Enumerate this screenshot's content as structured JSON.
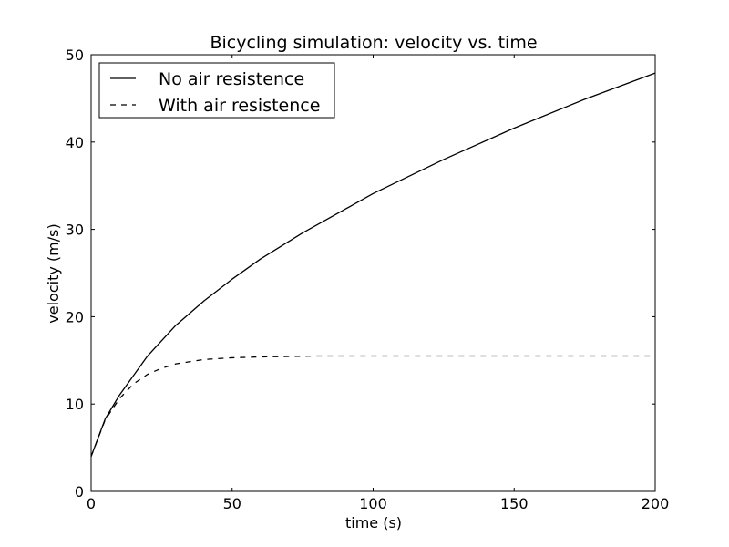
{
  "chart_data": {
    "type": "line",
    "title": "Bicycling simulation: velocity vs. time",
    "xlabel": "time (s)",
    "ylabel": "velocity (m/s)",
    "xlim": [
      0,
      200
    ],
    "ylim": [
      0,
      50
    ],
    "x_ticks": [
      0,
      50,
      100,
      150,
      200
    ],
    "y_ticks": [
      0,
      10,
      20,
      30,
      40,
      50
    ],
    "x_tick_labels": [
      "0",
      "50",
      "100",
      "150",
      "200"
    ],
    "y_tick_labels": [
      "0",
      "10",
      "20",
      "30",
      "40",
      "50"
    ],
    "grid": false,
    "legend_position": "top-left",
    "series": [
      {
        "name": "No air resistence",
        "line_style": "solid",
        "color": "#000000",
        "x": [
          0,
          5,
          10,
          20,
          30,
          40,
          50,
          60,
          75,
          100,
          125,
          150,
          175,
          200
        ],
        "y": [
          4.0,
          8.3,
          11.0,
          15.5,
          19.0,
          21.8,
          24.3,
          26.6,
          29.6,
          34.1,
          38.0,
          41.6,
          44.9,
          47.9
        ]
      },
      {
        "name": "With air resistence",
        "line_style": "dashed",
        "color": "#000000",
        "x": [
          0,
          5,
          10,
          15,
          20,
          25,
          30,
          40,
          50,
          60,
          80,
          100,
          150,
          200
        ],
        "y": [
          4.0,
          8.2,
          10.6,
          12.3,
          13.4,
          14.1,
          14.6,
          15.1,
          15.3,
          15.4,
          15.5,
          15.5,
          15.5,
          15.5
        ]
      }
    ]
  }
}
